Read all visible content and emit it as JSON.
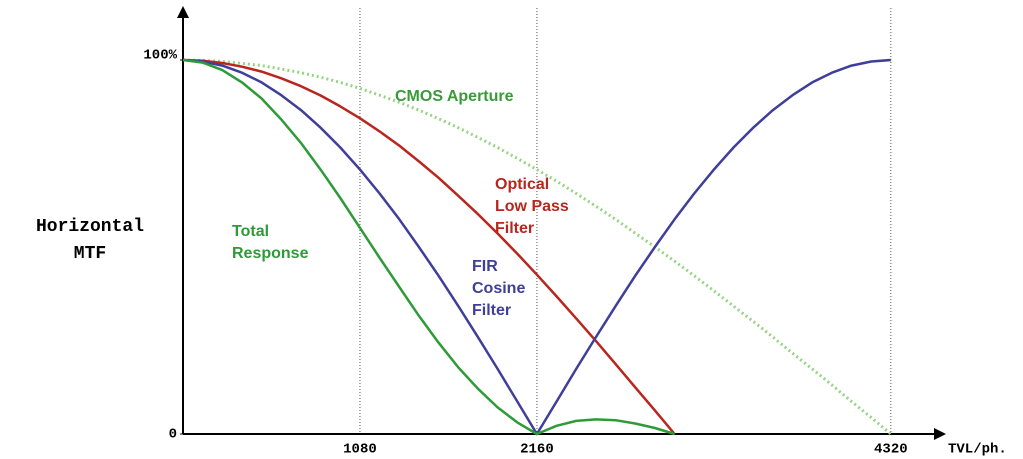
{
  "chart_data": {
    "type": "line",
    "ylabel": "Horizontal MTF",
    "xlabel": "TVL/ph.",
    "x": [
      0,
      120,
      240,
      360,
      480,
      600,
      720,
      840,
      960,
      1080,
      1200,
      1320,
      1440,
      1560,
      1680,
      1800,
      1920,
      2040,
      2160,
      2280,
      2400,
      2520,
      2640,
      2760,
      2880,
      3000,
      3120,
      3240,
      3360,
      3480,
      3600,
      3720,
      3840,
      3960,
      4080,
      4200,
      4320
    ],
    "xlim": [
      0,
      4620
    ],
    "xticks": [
      1080,
      2160,
      4320
    ],
    "ylim": [
      0,
      100
    ],
    "yticks": [
      0,
      {
        "value": 100,
        "label": "100%"
      }
    ],
    "grid": true,
    "series": [
      {
        "name": "CMOS Aperture",
        "color": "#96d483",
        "style": "dotted",
        "values": [
          100,
          99.9,
          99.6,
          99.1,
          98.5,
          97.6,
          96.6,
          95.4,
          94.0,
          92.4,
          90.6,
          88.7,
          86.6,
          84.3,
          81.9,
          79.3,
          76.6,
          73.7,
          70.7,
          67.6,
          64.3,
          60.9,
          57.4,
          53.7,
          50.0,
          46.2,
          42.3,
          38.3,
          34.2,
          30.1,
          25.9,
          21.6,
          17.4,
          13.1,
          8.7,
          4.4,
          0
        ]
      },
      {
        "name": "Optical Low Pass Filter",
        "color": "#b8261e",
        "values": [
          100,
          99.8,
          99.2,
          98.2,
          96.9,
          95.1,
          93.0,
          90.5,
          87.6,
          84.4,
          80.9,
          77.1,
          72.9,
          68.5,
          63.7,
          58.8,
          53.6,
          48.2,
          42.6,
          36.8,
          30.9,
          24.9,
          18.7,
          12.5,
          6.3,
          0,
          null,
          null,
          null,
          null,
          null,
          null,
          null,
          null,
          null,
          null,
          null
        ]
      },
      {
        "name": "FIR Cosine Filter",
        "color": "#3f3f9a",
        "values": [
          100,
          99.6,
          98.5,
          96.6,
          94.0,
          90.6,
          86.6,
          81.9,
          76.6,
          70.7,
          64.3,
          57.4,
          50.0,
          42.3,
          34.2,
          25.9,
          17.4,
          8.7,
          0,
          8.7,
          17.4,
          25.9,
          34.2,
          42.3,
          50.0,
          57.4,
          64.3,
          70.7,
          76.6,
          81.9,
          86.6,
          90.6,
          94.0,
          96.6,
          98.5,
          99.6,
          100
        ]
      },
      {
        "name": "Total Response",
        "color": "#2f9a38",
        "values": [
          100,
          99.3,
          97.3,
          94.0,
          89.7,
          84.1,
          77.8,
          70.7,
          63.1,
          55.1,
          47.1,
          39.3,
          31.6,
          24.4,
          17.8,
          12.1,
          7.1,
          3.1,
          0,
          2.2,
          3.5,
          3.9,
          3.7,
          2.8,
          1.6,
          0,
          null,
          null,
          null,
          null,
          null,
          null,
          null,
          null,
          null,
          null,
          null
        ]
      }
    ]
  }
}
